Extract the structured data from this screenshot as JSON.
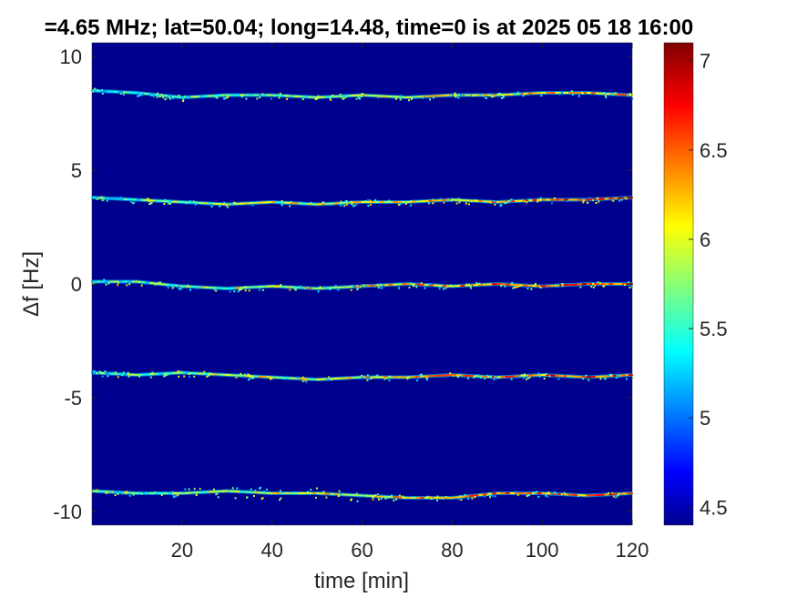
{
  "chart_data": {
    "type": "heatmap",
    "title": "=4.65 MHz;  lat=50.04; long=14.48, time=0 is at 2025 05 18 16:00",
    "xlabel": "time [min]",
    "ylabel": "Δf [Hz]",
    "xlim": [
      0,
      120
    ],
    "ylim": [
      -10.6,
      10.6
    ],
    "x_ticks": [
      20,
      40,
      60,
      80,
      100,
      120
    ],
    "y_ticks": [
      -10,
      -5,
      0,
      5,
      10
    ],
    "colorbar": {
      "colormap": "jet",
      "range": [
        4.4,
        7.1
      ],
      "ticks": [
        4.5,
        5,
        5.5,
        6,
        6.5,
        7
      ]
    },
    "grid": false,
    "background_value": 4.4,
    "traces": [
      {
        "center_hz": 8.3,
        "x": [
          0,
          10,
          20,
          30,
          40,
          50,
          60,
          70,
          80,
          90,
          100,
          110,
          120
        ],
        "delta_hz": [
          0.2,
          0.1,
          -0.1,
          0.0,
          0.0,
          -0.1,
          0.0,
          -0.1,
          0.0,
          0.0,
          0.1,
          0.1,
          0.0
        ],
        "peak_value": 6.6
      },
      {
        "center_hz": 3.8,
        "x": [
          0,
          10,
          20,
          30,
          40,
          50,
          60,
          70,
          80,
          90,
          100,
          110,
          120
        ],
        "delta_hz": [
          0.0,
          -0.1,
          -0.2,
          -0.3,
          -0.2,
          -0.3,
          -0.2,
          -0.2,
          -0.1,
          -0.2,
          -0.1,
          -0.1,
          0.0
        ],
        "peak_value": 6.9
      },
      {
        "center_hz": 0.0,
        "x": [
          0,
          10,
          20,
          30,
          40,
          50,
          60,
          70,
          80,
          90,
          100,
          110,
          120
        ],
        "delta_hz": [
          0.1,
          0.1,
          -0.1,
          -0.2,
          -0.1,
          -0.2,
          -0.1,
          0.0,
          -0.1,
          0.0,
          -0.1,
          0.0,
          0.0
        ],
        "peak_value": 7.0
      },
      {
        "center_hz": -4.0,
        "x": [
          0,
          10,
          20,
          30,
          40,
          50,
          60,
          70,
          80,
          90,
          100,
          110,
          120
        ],
        "delta_hz": [
          0.1,
          0.0,
          0.1,
          0.0,
          -0.1,
          -0.2,
          -0.1,
          -0.1,
          0.0,
          -0.1,
          0.0,
          -0.1,
          0.0
        ],
        "peak_value": 7.0
      },
      {
        "center_hz": -9.2,
        "x": [
          0,
          10,
          20,
          30,
          40,
          50,
          60,
          70,
          80,
          90,
          100,
          110,
          120
        ],
        "delta_hz": [
          0.1,
          0.0,
          0.0,
          0.1,
          0.0,
          0.0,
          -0.1,
          -0.2,
          -0.2,
          0.0,
          0.0,
          -0.1,
          0.0
        ],
        "peak_value": 6.9
      }
    ]
  }
}
